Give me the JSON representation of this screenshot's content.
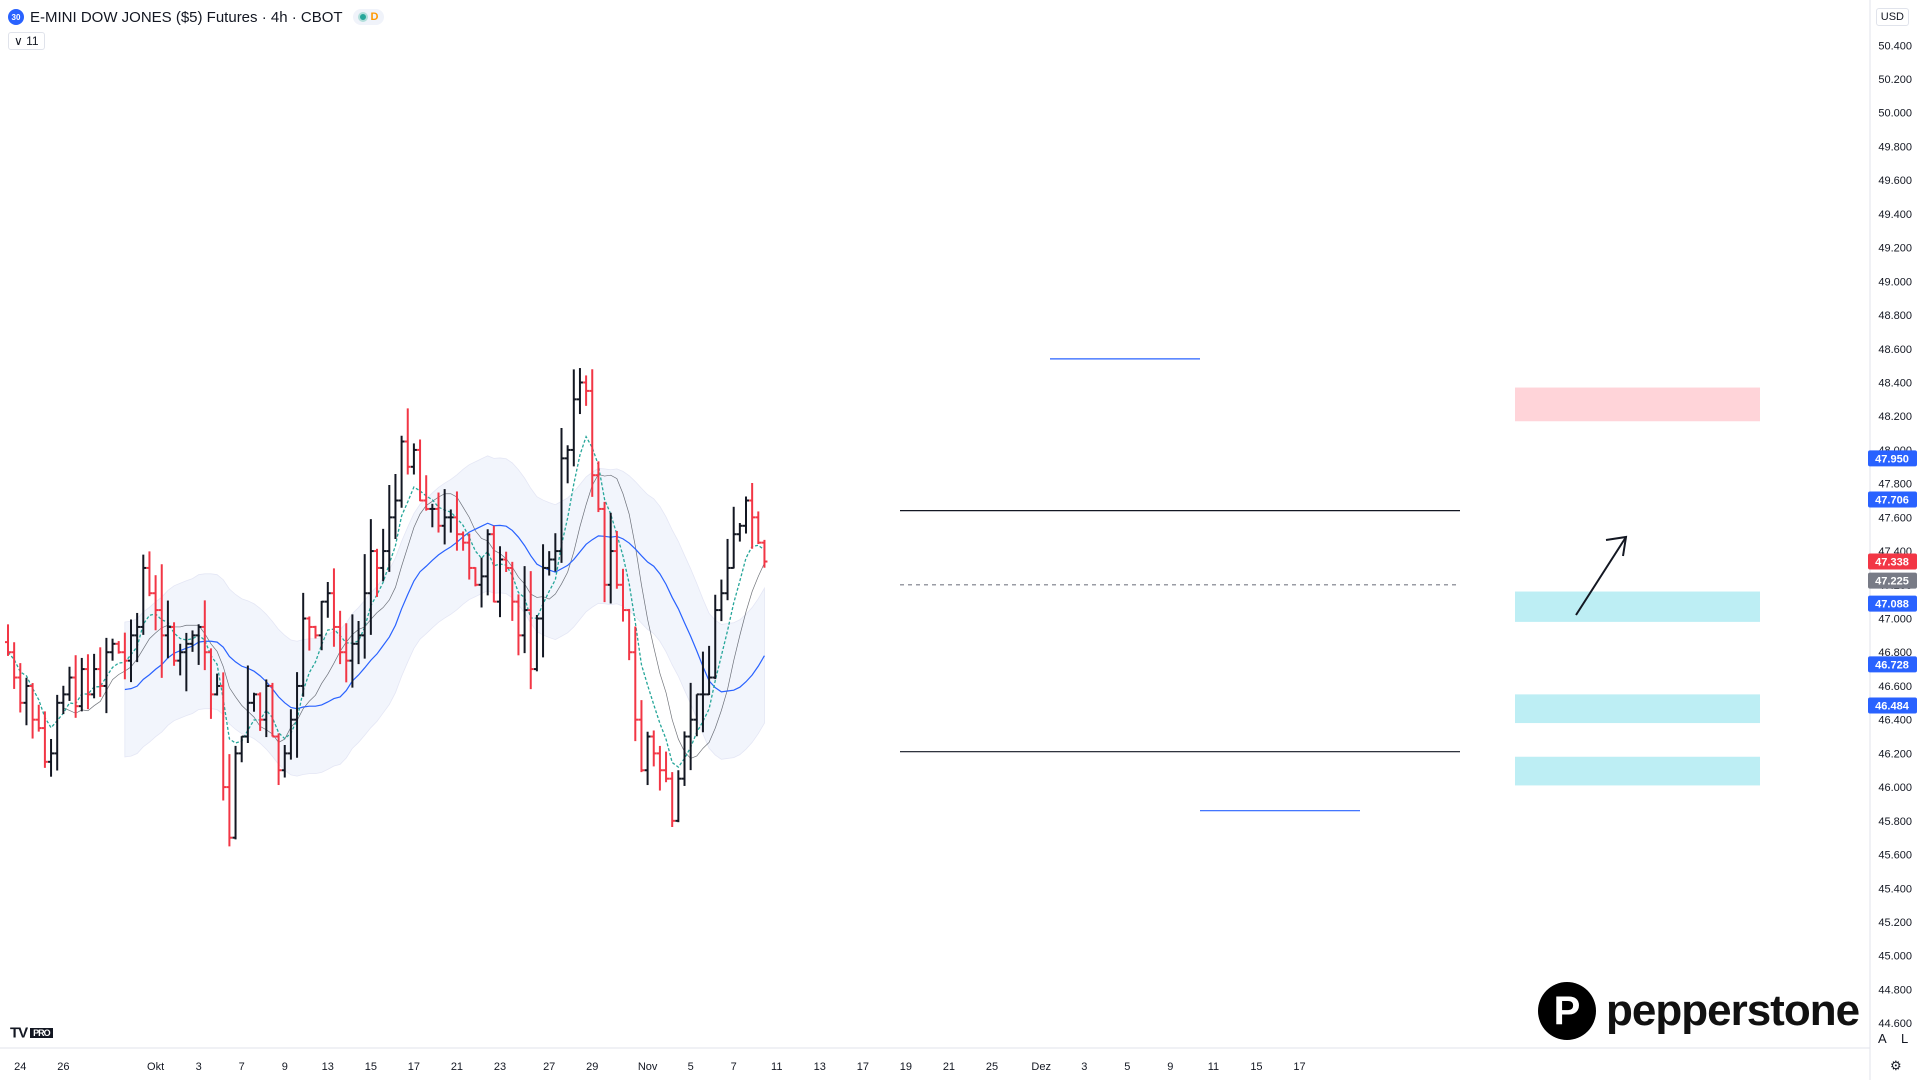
{
  "header": {
    "badge": "30",
    "title": "E-MINI DOW JONES ($5) Futures · 4h · CBOT",
    "status_letter": "D",
    "indicator_count": "11",
    "currency": "USD"
  },
  "branding": {
    "logo_letter": "P",
    "name": "pepperstone",
    "tv_logo": "TV",
    "tv_suffix": "PRO"
  },
  "corner_buttons": {
    "auto": "A",
    "log": "L",
    "settings_icon": "gear-icon"
  },
  "colors": {
    "up_bar": "#131722",
    "down_bar": "#f23645",
    "ema_fast": "#26a69a",
    "ma_mid": "#2962ff",
    "ma_slow": "#131722",
    "band": "#e3eaf9",
    "demand_zone": "#b2ebf2",
    "supply_zone": "#ffcdd2",
    "level": "#2962ff",
    "price_tag": "#f23645"
  },
  "chart_data": {
    "type": "ohlc",
    "price_scale": {
      "ticks": [
        "50.400",
        "50.200",
        "50.000",
        "49.800",
        "49.600",
        "49.400",
        "49.200",
        "49.000",
        "48.800",
        "48.600",
        "48.400",
        "48.200",
        "48.000",
        "47.800",
        "47.600",
        "47.400",
        "47.200",
        "47.000",
        "46.800",
        "46.600",
        "46.400",
        "46.200",
        "46.000",
        "45.800",
        "45.600",
        "45.400",
        "45.200",
        "45.000",
        "44.800",
        "44.600"
      ],
      "tick_values": [
        50400,
        50200,
        50000,
        49800,
        49600,
        49400,
        49200,
        49000,
        48800,
        48600,
        48400,
        48200,
        48000,
        47800,
        47600,
        47400,
        47200,
        47000,
        46800,
        46600,
        46400,
        46200,
        46000,
        45800,
        45600,
        45400,
        45200,
        45000,
        44800,
        44600
      ],
      "range": [
        44500,
        50550
      ]
    },
    "time_scale": {
      "labels": [
        "24",
        "26",
        "Okt",
        "3",
        "7",
        "9",
        "13",
        "15",
        "17",
        "21",
        "23",
        "27",
        "29",
        "Nov",
        "5",
        "7",
        "11",
        "13",
        "17",
        "19",
        "21",
        "25",
        "Dez",
        "3",
        "5",
        "9",
        "11",
        "15",
        "17"
      ],
      "index": [
        2,
        9,
        24,
        31,
        38,
        45,
        52,
        59,
        66,
        73,
        80,
        88,
        95,
        104,
        111,
        118,
        125,
        132,
        139,
        146,
        153,
        160,
        168,
        175,
        182,
        189,
        196,
        203,
        210
      ]
    },
    "price_tags": [
      {
        "label": "47.950",
        "value": 47950,
        "color": "#2962ff"
      },
      {
        "label": "47.706",
        "value": 47706,
        "color": "#2962ff"
      },
      {
        "label": "47.338",
        "value": 47338,
        "color": "#f23645"
      },
      {
        "label": "47.225",
        "value": 47225,
        "color": "#787b86"
      },
      {
        "label": "47.088",
        "value": 47088,
        "color": "#2962ff"
      },
      {
        "label": "46.728",
        "value": 46728,
        "color": "#2962ff"
      },
      {
        "label": "46.484",
        "value": 46484,
        "color": "#2962ff"
      }
    ],
    "closes": [
      46800,
      46650,
      46500,
      46600,
      46400,
      46350,
      46150,
      46200,
      46500,
      46550,
      46650,
      46480,
      46700,
      46550,
      46700,
      46600,
      46800,
      46850,
      46800,
      46750,
      46900,
      46950,
      47300,
      47150,
      47050,
      46900,
      46950,
      46750,
      46800,
      46850,
      46900,
      46950,
      46800,
      46550,
      46600,
      46000,
      45700,
      46200,
      46300,
      46500,
      46550,
      46400,
      46600,
      46300,
      46100,
      46200,
      46400,
      46600,
      47000,
      46950,
      46900,
      47100,
      47150,
      46950,
      46800,
      46750,
      46850,
      46900,
      47150,
      47400,
      47300,
      47400,
      47600,
      47700,
      48050,
      47900,
      48000,
      47700,
      47650,
      47650,
      47550,
      47600,
      47600,
      47500,
      47450,
      47300,
      47200,
      47250,
      47500,
      47100,
      47350,
      47300,
      47100,
      46900,
      47050,
      46700,
      47000,
      47300,
      47350,
      47400,
      47950,
      48000,
      48300,
      48400,
      48350,
      47850,
      47650,
      47200,
      47400,
      47200,
      47050,
      46800,
      46400,
      46100,
      46300,
      46200,
      46100,
      46050,
      45800,
      46050,
      46300,
      46400,
      46550,
      46550,
      46650,
      47050,
      47150,
      47300,
      47500,
      47550,
      47700,
      47600,
      47450,
      47338
    ],
    "ohlc": [],
    "zones": [
      {
        "type": "supply",
        "from": 48170,
        "to": 48370
      },
      {
        "type": "demand",
        "from": 46980,
        "to": 47160
      },
      {
        "type": "demand",
        "from": 46380,
        "to": 46550
      },
      {
        "type": "demand",
        "from": 46010,
        "to": 46180
      }
    ],
    "levels": [
      {
        "value": 47640,
        "style": "solid",
        "color": "#131722"
      },
      {
        "value": 47200,
        "style": "dashed",
        "color": "#787b86"
      },
      {
        "value": 46210,
        "style": "solid",
        "color": "#131722"
      },
      {
        "value": 48540,
        "style": "solid",
        "color": "#2962ff"
      },
      {
        "value": 45860,
        "style": "solid",
        "color": "#2962ff"
      }
    ],
    "annotation": {
      "type": "arrow",
      "direction": "up"
    }
  }
}
